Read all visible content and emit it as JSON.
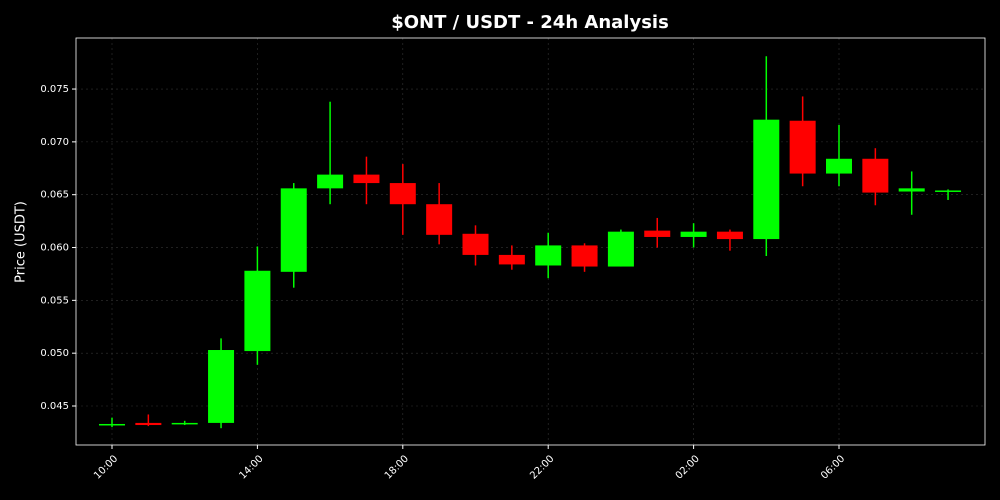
{
  "chart_data": {
    "type": "candlestick",
    "title": "$ONT / USDT - 24h Analysis",
    "y_label": "Price (USDT)",
    "categories": [
      "10:00",
      null,
      null,
      null,
      "14:00",
      null,
      null,
      null,
      "18:00",
      null,
      null,
      null,
      "22:00",
      null,
      null,
      null,
      "02:00",
      null,
      null,
      null,
      "06:00",
      null,
      null,
      null
    ],
    "open": [
      0.0432,
      0.0434,
      0.0433,
      0.0434,
      0.0502,
      0.0577,
      0.0656,
      0.0669,
      0.0661,
      0.0641,
      0.0613,
      0.0593,
      0.0583,
      0.0602,
      0.0582,
      0.0616,
      0.061,
      0.0615,
      0.0608,
      0.072,
      0.067,
      0.0684,
      0.0653,
      0.0653
    ],
    "high": [
      0.0439,
      0.0442,
      0.0436,
      0.0514,
      0.0601,
      0.0661,
      0.0738,
      0.0686,
      0.0679,
      0.0661,
      0.0621,
      0.0602,
      0.0614,
      0.0604,
      0.0617,
      0.0628,
      0.0623,
      0.0617,
      0.0781,
      0.0743,
      0.0716,
      0.0694,
      0.0672,
      0.0655
    ],
    "low": [
      0.043,
      0.0431,
      0.0432,
      0.0429,
      0.0489,
      0.0562,
      0.0641,
      0.0641,
      0.0612,
      0.0603,
      0.0583,
      0.0579,
      0.0571,
      0.0577,
      0.0582,
      0.06,
      0.06,
      0.0597,
      0.0592,
      0.0658,
      0.0658,
      0.064,
      0.0631,
      0.0645
    ],
    "close": [
      0.0433,
      0.0432,
      0.0434,
      0.0503,
      0.0578,
      0.0656,
      0.0669,
      0.0661,
      0.0641,
      0.0612,
      0.0593,
      0.0584,
      0.0602,
      0.0582,
      0.0615,
      0.061,
      0.0615,
      0.0608,
      0.0721,
      0.067,
      0.0684,
      0.0652,
      0.0656,
      0.0654
    ],
    "up_color": "#00ff00",
    "down_color": "#ff0000",
    "ylim": [
      0.04131,
      0.07983
    ],
    "yticks": [
      0.045,
      {
        "value": 0.05,
        "label": "0.050"
      },
      0.055,
      {
        "value": 0.06,
        "label": "0.060"
      },
      0.065,
      {
        "value": 0.07,
        "label": "0.070"
      },
      0.075
    ],
    "grid": true
  }
}
